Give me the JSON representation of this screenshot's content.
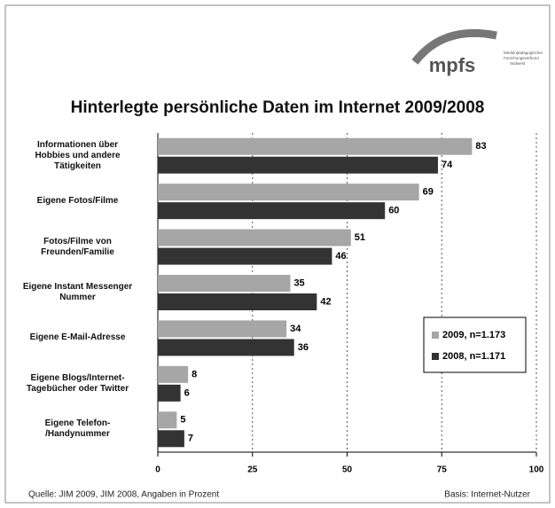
{
  "chart_data": {
    "type": "bar",
    "orientation": "horizontal",
    "title": "Hinterlegte persönliche Daten im Internet 2009/2008",
    "logo": {
      "name": "mpfs",
      "lines": [
        "Medienpädagogischer",
        "Forschungsverbund",
        "Südwest"
      ]
    },
    "categories": [
      "Informationen über\nHobbies und andere\nTätigkeiten",
      "Eigene Fotos/Filme",
      "Fotos/Filme von\nFreunden/Familie",
      "Eigene Instant Messenger\nNummer",
      "Eigene E-Mail-Adresse",
      "Eigene Blogs/Internet-\nTagebücher oder Twitter",
      "Eigene Telefon-\n/Handynummer"
    ],
    "series": [
      {
        "name": "2009, n=1.173",
        "color": "#a6a6a6",
        "values": [
          83,
          69,
          51,
          35,
          34,
          8,
          5
        ]
      },
      {
        "name": "2008, n=1.171",
        "color": "#333333",
        "values": [
          74,
          60,
          46,
          42,
          36,
          6,
          7
        ]
      }
    ],
    "xlim": [
      0,
      100
    ],
    "xticks": [
      0,
      25,
      50,
      75,
      100
    ],
    "grid": true,
    "legend": "lower right",
    "source": "Quelle: JIM 2009, JIM 2008, Angaben in Prozent",
    "note": "Basis: Internet-Nutzer"
  }
}
